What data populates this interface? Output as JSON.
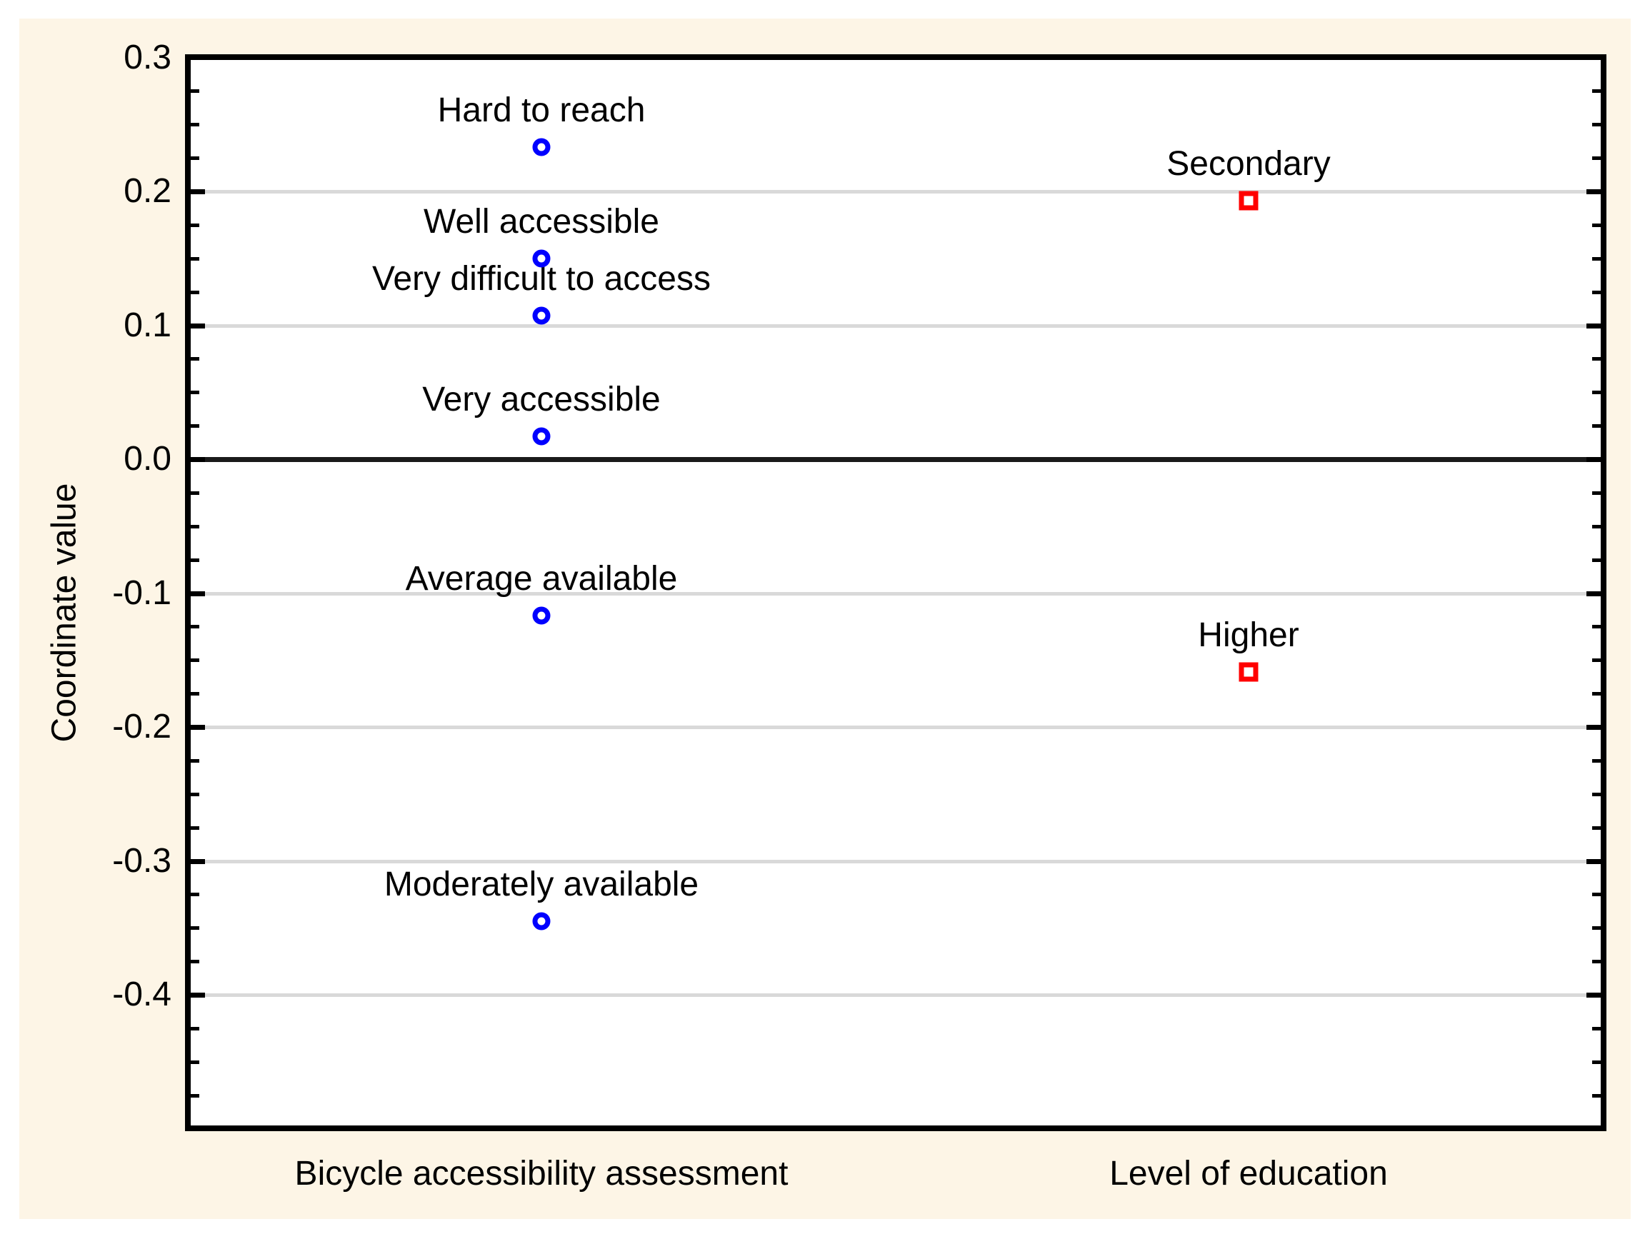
{
  "chart_data": {
    "type": "scatter",
    "title": "",
    "xlabel": "",
    "ylabel": "Coordinate value",
    "ylim": [
      -0.5,
      0.3
    ],
    "yticks": [
      0.3,
      0.2,
      0.1,
      0.0,
      -0.1,
      -0.2,
      -0.3,
      -0.4
    ],
    "ytick_labels": [
      "0.3",
      "0.2",
      "0.1",
      "0.0",
      "-0.1",
      "-0.2",
      "-0.3",
      "-0.4"
    ],
    "minor_tick_step": 0.025,
    "legend_position": "none",
    "grid": {
      "horizontal_major": true,
      "color": "#D9D9D9",
      "zero_line_color": "#1A1A1A"
    },
    "categories": [
      "Bicycle accessibility assessment",
      "Level of education"
    ],
    "series": [
      {
        "name": "Bicycle accessibility assessment",
        "marker": "circle",
        "color": "#0000FF",
        "points": [
          {
            "label": "Hard to reach",
            "value": 0.233
          },
          {
            "label": "Well accessible",
            "value": 0.15
          },
          {
            "label": "Very difficult to access",
            "value": 0.107
          },
          {
            "label": "Very accessible",
            "value": 0.017
          },
          {
            "label": "Average available",
            "value": -0.117
          },
          {
            "label": "Moderately available",
            "value": -0.345
          }
        ]
      },
      {
        "name": "Level of education",
        "marker": "square",
        "color": "#FF0000",
        "points": [
          {
            "label": "Secondary",
            "value": 0.193
          },
          {
            "label": "Higher",
            "value": -0.159
          }
        ]
      }
    ],
    "background_color": "#FDF5E6",
    "plot_background_color": "#FFFFFF",
    "axis_color": "#000000",
    "text_color": "#000000"
  }
}
